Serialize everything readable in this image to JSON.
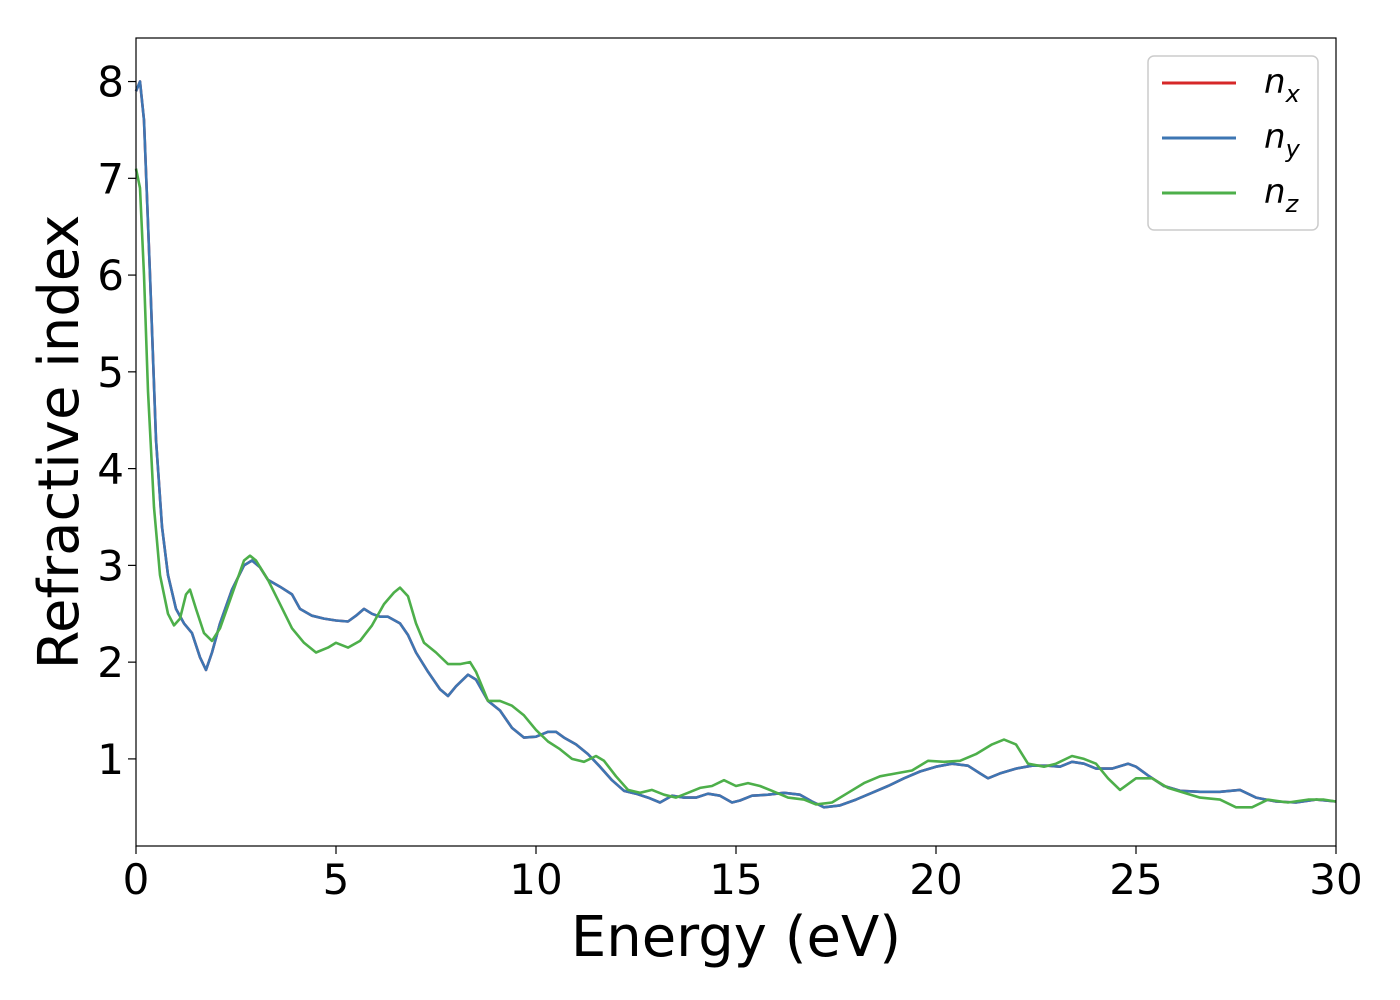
{
  "chart_data": {
    "type": "line",
    "title": "",
    "xlabel": "Energy (eV)",
    "ylabel": "Refractive index",
    "xlim": [
      0,
      30
    ],
    "ylim": [
      0.1,
      8.45
    ],
    "xticks": [
      0,
      5,
      10,
      15,
      20,
      25,
      30
    ],
    "yticks": [
      1,
      2,
      3,
      4,
      5,
      6,
      7,
      8
    ],
    "grid": false,
    "legend_position": "top-right",
    "series": [
      {
        "name": "n",
        "subscript": "x",
        "color": "#d62728",
        "points": [
          [
            0,
            7.9
          ],
          [
            0.1,
            8.0
          ],
          [
            0.2,
            7.6
          ],
          [
            0.35,
            6.0
          ],
          [
            0.5,
            4.3
          ],
          [
            0.65,
            3.4
          ],
          [
            0.8,
            2.9
          ],
          [
            1.0,
            2.55
          ],
          [
            1.2,
            2.4
          ],
          [
            1.4,
            2.3
          ],
          [
            1.6,
            2.05
          ],
          [
            1.75,
            1.92
          ],
          [
            1.9,
            2.1
          ],
          [
            2.1,
            2.4
          ],
          [
            2.4,
            2.75
          ],
          [
            2.7,
            3.0
          ],
          [
            2.9,
            3.05
          ],
          [
            3.1,
            2.98
          ],
          [
            3.3,
            2.85
          ],
          [
            3.6,
            2.78
          ],
          [
            3.9,
            2.7
          ],
          [
            4.1,
            2.55
          ],
          [
            4.4,
            2.48
          ],
          [
            4.7,
            2.45
          ],
          [
            5.0,
            2.43
          ],
          [
            5.3,
            2.42
          ],
          [
            5.5,
            2.48
          ],
          [
            5.7,
            2.55
          ],
          [
            5.9,
            2.5
          ],
          [
            6.1,
            2.47
          ],
          [
            6.3,
            2.47
          ],
          [
            6.6,
            2.4
          ],
          [
            6.8,
            2.28
          ],
          [
            7.0,
            2.1
          ],
          [
            7.3,
            1.9
          ],
          [
            7.6,
            1.72
          ],
          [
            7.8,
            1.65
          ],
          [
            8.0,
            1.75
          ],
          [
            8.3,
            1.87
          ],
          [
            8.5,
            1.82
          ],
          [
            8.8,
            1.6
          ],
          [
            9.1,
            1.5
          ],
          [
            9.4,
            1.32
          ],
          [
            9.7,
            1.22
          ],
          [
            10.0,
            1.23
          ],
          [
            10.3,
            1.28
          ],
          [
            10.5,
            1.28
          ],
          [
            10.7,
            1.22
          ],
          [
            11.0,
            1.15
          ],
          [
            11.3,
            1.05
          ],
          [
            11.6,
            0.92
          ],
          [
            11.9,
            0.78
          ],
          [
            12.2,
            0.67
          ],
          [
            12.5,
            0.64
          ],
          [
            12.8,
            0.6
          ],
          [
            13.1,
            0.55
          ],
          [
            13.4,
            0.62
          ],
          [
            13.7,
            0.6
          ],
          [
            14.0,
            0.6
          ],
          [
            14.3,
            0.64
          ],
          [
            14.6,
            0.62
          ],
          [
            14.9,
            0.55
          ],
          [
            15.1,
            0.57
          ],
          [
            15.4,
            0.62
          ],
          [
            15.8,
            0.63
          ],
          [
            16.2,
            0.65
          ],
          [
            16.6,
            0.63
          ],
          [
            16.9,
            0.56
          ],
          [
            17.2,
            0.5
          ],
          [
            17.6,
            0.52
          ],
          [
            18.0,
            0.58
          ],
          [
            18.4,
            0.65
          ],
          [
            18.8,
            0.72
          ],
          [
            19.2,
            0.8
          ],
          [
            19.6,
            0.87
          ],
          [
            20.0,
            0.92
          ],
          [
            20.4,
            0.95
          ],
          [
            20.8,
            0.93
          ],
          [
            21.1,
            0.85
          ],
          [
            21.3,
            0.8
          ],
          [
            21.6,
            0.85
          ],
          [
            22.0,
            0.9
          ],
          [
            22.4,
            0.93
          ],
          [
            22.8,
            0.93
          ],
          [
            23.1,
            0.92
          ],
          [
            23.4,
            0.97
          ],
          [
            23.7,
            0.95
          ],
          [
            24.0,
            0.9
          ],
          [
            24.4,
            0.9
          ],
          [
            24.8,
            0.95
          ],
          [
            25.0,
            0.92
          ],
          [
            25.3,
            0.83
          ],
          [
            25.7,
            0.72
          ],
          [
            26.1,
            0.67
          ],
          [
            26.6,
            0.66
          ],
          [
            27.1,
            0.66
          ],
          [
            27.6,
            0.68
          ],
          [
            28.0,
            0.6
          ],
          [
            28.5,
            0.56
          ],
          [
            29.0,
            0.55
          ],
          [
            29.5,
            0.58
          ],
          [
            30.0,
            0.56
          ]
        ]
      },
      {
        "name": "n",
        "subscript": "y",
        "color": "#3d76b3",
        "points": [
          [
            0,
            7.9
          ],
          [
            0.1,
            8.0
          ],
          [
            0.2,
            7.6
          ],
          [
            0.35,
            6.0
          ],
          [
            0.5,
            4.3
          ],
          [
            0.65,
            3.4
          ],
          [
            0.8,
            2.9
          ],
          [
            1.0,
            2.55
          ],
          [
            1.2,
            2.4
          ],
          [
            1.4,
            2.3
          ],
          [
            1.6,
            2.05
          ],
          [
            1.75,
            1.92
          ],
          [
            1.9,
            2.1
          ],
          [
            2.1,
            2.4
          ],
          [
            2.4,
            2.75
          ],
          [
            2.7,
            3.0
          ],
          [
            2.9,
            3.05
          ],
          [
            3.1,
            2.98
          ],
          [
            3.3,
            2.85
          ],
          [
            3.6,
            2.78
          ],
          [
            3.9,
            2.7
          ],
          [
            4.1,
            2.55
          ],
          [
            4.4,
            2.48
          ],
          [
            4.7,
            2.45
          ],
          [
            5.0,
            2.43
          ],
          [
            5.3,
            2.42
          ],
          [
            5.5,
            2.48
          ],
          [
            5.7,
            2.55
          ],
          [
            5.9,
            2.5
          ],
          [
            6.1,
            2.47
          ],
          [
            6.3,
            2.47
          ],
          [
            6.6,
            2.4
          ],
          [
            6.8,
            2.28
          ],
          [
            7.0,
            2.1
          ],
          [
            7.3,
            1.9
          ],
          [
            7.6,
            1.72
          ],
          [
            7.8,
            1.65
          ],
          [
            8.0,
            1.75
          ],
          [
            8.3,
            1.87
          ],
          [
            8.5,
            1.82
          ],
          [
            8.8,
            1.6
          ],
          [
            9.1,
            1.5
          ],
          [
            9.4,
            1.32
          ],
          [
            9.7,
            1.22
          ],
          [
            10.0,
            1.23
          ],
          [
            10.3,
            1.28
          ],
          [
            10.5,
            1.28
          ],
          [
            10.7,
            1.22
          ],
          [
            11.0,
            1.15
          ],
          [
            11.3,
            1.05
          ],
          [
            11.6,
            0.92
          ],
          [
            11.9,
            0.78
          ],
          [
            12.2,
            0.67
          ],
          [
            12.5,
            0.64
          ],
          [
            12.8,
            0.6
          ],
          [
            13.1,
            0.55
          ],
          [
            13.4,
            0.62
          ],
          [
            13.7,
            0.6
          ],
          [
            14.0,
            0.6
          ],
          [
            14.3,
            0.64
          ],
          [
            14.6,
            0.62
          ],
          [
            14.9,
            0.55
          ],
          [
            15.1,
            0.57
          ],
          [
            15.4,
            0.62
          ],
          [
            15.8,
            0.63
          ],
          [
            16.2,
            0.65
          ],
          [
            16.6,
            0.63
          ],
          [
            16.9,
            0.56
          ],
          [
            17.2,
            0.5
          ],
          [
            17.6,
            0.52
          ],
          [
            18.0,
            0.58
          ],
          [
            18.4,
            0.65
          ],
          [
            18.8,
            0.72
          ],
          [
            19.2,
            0.8
          ],
          [
            19.6,
            0.87
          ],
          [
            20.0,
            0.92
          ],
          [
            20.4,
            0.95
          ],
          [
            20.8,
            0.93
          ],
          [
            21.1,
            0.85
          ],
          [
            21.3,
            0.8
          ],
          [
            21.6,
            0.85
          ],
          [
            22.0,
            0.9
          ],
          [
            22.4,
            0.93
          ],
          [
            22.8,
            0.93
          ],
          [
            23.1,
            0.92
          ],
          [
            23.4,
            0.97
          ],
          [
            23.7,
            0.95
          ],
          [
            24.0,
            0.9
          ],
          [
            24.4,
            0.9
          ],
          [
            24.8,
            0.95
          ],
          [
            25.0,
            0.92
          ],
          [
            25.3,
            0.83
          ],
          [
            25.7,
            0.72
          ],
          [
            26.1,
            0.67
          ],
          [
            26.6,
            0.66
          ],
          [
            27.1,
            0.66
          ],
          [
            27.6,
            0.68
          ],
          [
            28.0,
            0.6
          ],
          [
            28.5,
            0.56
          ],
          [
            29.0,
            0.55
          ],
          [
            29.5,
            0.58
          ],
          [
            30.0,
            0.56
          ]
        ]
      },
      {
        "name": "n",
        "subscript": "z",
        "color": "#4daf4a",
        "points": [
          [
            0,
            7.1
          ],
          [
            0.1,
            6.9
          ],
          [
            0.2,
            6.0
          ],
          [
            0.3,
            4.8
          ],
          [
            0.45,
            3.6
          ],
          [
            0.6,
            2.9
          ],
          [
            0.8,
            2.5
          ],
          [
            0.95,
            2.38
          ],
          [
            1.1,
            2.45
          ],
          [
            1.25,
            2.7
          ],
          [
            1.35,
            2.75
          ],
          [
            1.5,
            2.55
          ],
          [
            1.7,
            2.3
          ],
          [
            1.9,
            2.22
          ],
          [
            2.1,
            2.35
          ],
          [
            2.4,
            2.7
          ],
          [
            2.7,
            3.05
          ],
          [
            2.85,
            3.1
          ],
          [
            3.0,
            3.05
          ],
          [
            3.3,
            2.85
          ],
          [
            3.6,
            2.6
          ],
          [
            3.9,
            2.35
          ],
          [
            4.2,
            2.2
          ],
          [
            4.5,
            2.1
          ],
          [
            4.8,
            2.15
          ],
          [
            5.0,
            2.2
          ],
          [
            5.3,
            2.15
          ],
          [
            5.6,
            2.22
          ],
          [
            5.9,
            2.38
          ],
          [
            6.2,
            2.6
          ],
          [
            6.45,
            2.72
          ],
          [
            6.6,
            2.77
          ],
          [
            6.8,
            2.68
          ],
          [
            7.0,
            2.4
          ],
          [
            7.2,
            2.2
          ],
          [
            7.5,
            2.1
          ],
          [
            7.8,
            1.98
          ],
          [
            8.1,
            1.98
          ],
          [
            8.35,
            2.0
          ],
          [
            8.5,
            1.9
          ],
          [
            8.8,
            1.6
          ],
          [
            9.1,
            1.6
          ],
          [
            9.4,
            1.55
          ],
          [
            9.7,
            1.45
          ],
          [
            10.0,
            1.3
          ],
          [
            10.3,
            1.18
          ],
          [
            10.6,
            1.1
          ],
          [
            10.9,
            1.0
          ],
          [
            11.2,
            0.97
          ],
          [
            11.5,
            1.03
          ],
          [
            11.7,
            0.98
          ],
          [
            12.0,
            0.82
          ],
          [
            12.3,
            0.68
          ],
          [
            12.6,
            0.65
          ],
          [
            12.9,
            0.68
          ],
          [
            13.2,
            0.63
          ],
          [
            13.5,
            0.6
          ],
          [
            13.8,
            0.65
          ],
          [
            14.1,
            0.7
          ],
          [
            14.4,
            0.72
          ],
          [
            14.7,
            0.78
          ],
          [
            15.0,
            0.72
          ],
          [
            15.3,
            0.75
          ],
          [
            15.6,
            0.72
          ],
          [
            15.9,
            0.67
          ],
          [
            16.3,
            0.6
          ],
          [
            16.7,
            0.58
          ],
          [
            17.0,
            0.53
          ],
          [
            17.4,
            0.55
          ],
          [
            17.8,
            0.65
          ],
          [
            18.2,
            0.75
          ],
          [
            18.6,
            0.82
          ],
          [
            19.0,
            0.85
          ],
          [
            19.4,
            0.88
          ],
          [
            19.8,
            0.98
          ],
          [
            20.2,
            0.97
          ],
          [
            20.6,
            0.98
          ],
          [
            21.0,
            1.05
          ],
          [
            21.4,
            1.15
          ],
          [
            21.7,
            1.2
          ],
          [
            22.0,
            1.15
          ],
          [
            22.3,
            0.95
          ],
          [
            22.7,
            0.92
          ],
          [
            23.0,
            0.95
          ],
          [
            23.4,
            1.03
          ],
          [
            23.7,
            1.0
          ],
          [
            24.0,
            0.95
          ],
          [
            24.3,
            0.8
          ],
          [
            24.6,
            0.68
          ],
          [
            25.0,
            0.8
          ],
          [
            25.4,
            0.8
          ],
          [
            25.8,
            0.7
          ],
          [
            26.2,
            0.65
          ],
          [
            26.6,
            0.6
          ],
          [
            27.1,
            0.58
          ],
          [
            27.5,
            0.5
          ],
          [
            27.9,
            0.5
          ],
          [
            28.3,
            0.58
          ],
          [
            28.8,
            0.55
          ],
          [
            29.3,
            0.58
          ],
          [
            29.7,
            0.58
          ],
          [
            30.0,
            0.56
          ]
        ]
      }
    ]
  }
}
